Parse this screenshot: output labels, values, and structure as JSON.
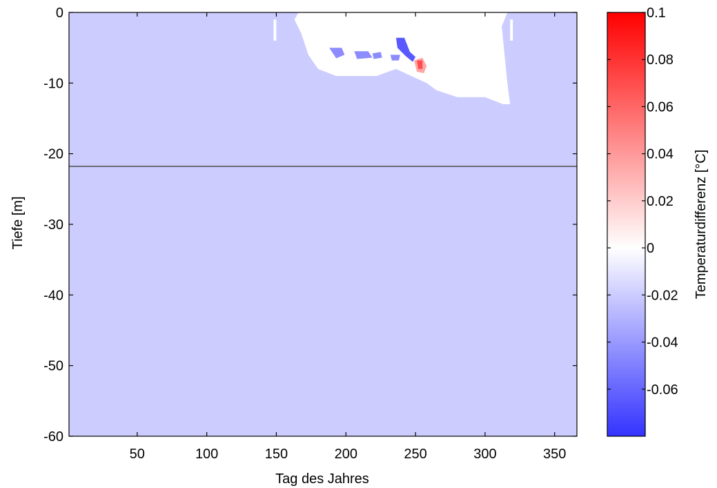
{
  "chart_data": {
    "type": "heatmap",
    "title": "",
    "xlabel": "Tag des Jahres",
    "ylabel": "Tiefe [m]",
    "xlim": [
      1,
      366
    ],
    "ylim": [
      -60,
      0
    ],
    "x_ticks": [
      50,
      100,
      150,
      200,
      250,
      300,
      350
    ],
    "x_tick_labels": [
      "50",
      "100",
      "150",
      "200",
      "250",
      "300",
      "350"
    ],
    "y_ticks": [
      0,
      -10,
      -20,
      -30,
      -40,
      -50,
      -60
    ],
    "y_tick_labels": [
      "0",
      "-10",
      "-20",
      "-30",
      "-40",
      "-50",
      "-60"
    ],
    "grid": false,
    "background_value": -0.02,
    "horizontal_line_depth": -21.8,
    "colorbar": {
      "label": "Temperaturdifferenz [°C]",
      "range": [
        -0.08,
        0.1
      ],
      "ticks": [
        0.1,
        0.08,
        0.06,
        0.04,
        0.02,
        0,
        -0.02,
        -0.04,
        -0.06
      ],
      "tick_labels": [
        "0.1",
        "0.08",
        "0.06",
        "0.04",
        "0.02",
        "0",
        "-0.02",
        "-0.04",
        "-0.06"
      ],
      "colors": {
        "min": "#3333ff",
        "zero": "#ffffff",
        "max": "#ff0000"
      }
    },
    "regions": [
      {
        "value": 0.0,
        "points": [
          [
            148,
            -1
          ],
          [
            150,
            -1
          ],
          [
            150,
            -4
          ],
          [
            148,
            -4
          ]
        ]
      },
      {
        "value": 0.0,
        "points": [
          [
            163,
            -1
          ],
          [
            168,
            -3
          ],
          [
            173,
            -6
          ],
          [
            180,
            -8
          ],
          [
            193,
            -9
          ],
          [
            210,
            -9
          ],
          [
            222,
            -9
          ],
          [
            236,
            -8
          ],
          [
            247,
            -9
          ],
          [
            258,
            -10
          ],
          [
            265,
            -11
          ],
          [
            280,
            -12
          ],
          [
            300,
            -12
          ],
          [
            313,
            -13
          ],
          [
            318,
            -13
          ],
          [
            316,
            -10
          ],
          [
            312,
            -2
          ],
          [
            316,
            0
          ],
          [
            300,
            0
          ],
          [
            240,
            0
          ],
          [
            200,
            0
          ],
          [
            175,
            0
          ],
          [
            166,
            0
          ]
        ]
      },
      {
        "value": 0.0,
        "points": [
          [
            318,
            -1
          ],
          [
            320,
            -1
          ],
          [
            320,
            -4
          ],
          [
            318,
            -4
          ]
        ]
      },
      {
        "value": -0.045,
        "points": [
          [
            188,
            -5
          ],
          [
            197,
            -5
          ],
          [
            199,
            -6
          ],
          [
            193,
            -6.5
          ]
        ]
      },
      {
        "value": -0.045,
        "points": [
          [
            206,
            -5.5
          ],
          [
            216,
            -5.5
          ],
          [
            219,
            -6.4
          ],
          [
            208,
            -6.6
          ]
        ]
      },
      {
        "value": -0.045,
        "points": [
          [
            219,
            -5.8
          ],
          [
            225,
            -5.6
          ],
          [
            226,
            -6.4
          ],
          [
            220,
            -6.6
          ]
        ]
      },
      {
        "value": -0.045,
        "points": [
          [
            232,
            -6
          ],
          [
            239,
            -6
          ],
          [
            238,
            -6.8
          ],
          [
            233,
            -6.8
          ]
        ]
      },
      {
        "value": -0.065,
        "points": [
          [
            236,
            -3.6
          ],
          [
            242,
            -3.6
          ],
          [
            246,
            -5.6
          ],
          [
            250,
            -6.3
          ],
          [
            248,
            -7
          ],
          [
            243,
            -6.2
          ],
          [
            237,
            -5
          ]
        ]
      },
      {
        "value": 0.035,
        "points": [
          [
            249,
            -6.8
          ],
          [
            255,
            -6.4
          ],
          [
            258,
            -7.6
          ],
          [
            256,
            -8.6
          ],
          [
            251,
            -8.4
          ]
        ]
      },
      {
        "value": 0.07,
        "points": [
          [
            251,
            -6.8
          ],
          [
            255,
            -6.8
          ],
          [
            255,
            -8
          ],
          [
            252,
            -8
          ]
        ]
      }
    ]
  }
}
